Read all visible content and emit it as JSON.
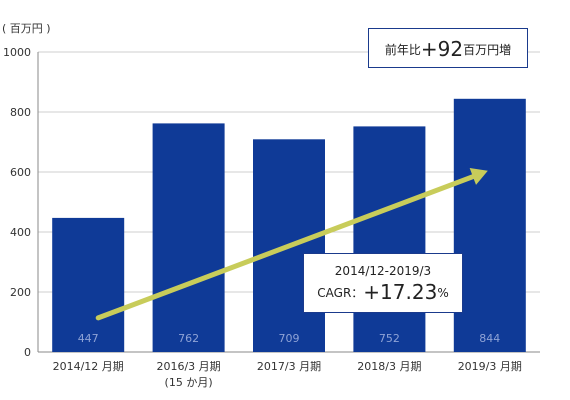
{
  "chart_data": {
    "type": "bar",
    "unit_label": "( 百万円 )",
    "categories": [
      "2014/12 月期",
      "2016/3 月期",
      "2017/3 月期",
      "2018/3 月期",
      "2019/3 月期"
    ],
    "category_sublabels": [
      "",
      "(15 か月)",
      "",
      "",
      ""
    ],
    "values": [
      447,
      762,
      709,
      752,
      844
    ],
    "ylim": [
      0,
      1000
    ],
    "yticks": [
      0,
      200,
      400,
      600,
      800,
      1000
    ],
    "grid": true,
    "bar_color": "#0f3a97",
    "bar_label_color": "#8fa3d6",
    "trend_arrow_color": "#c8cc5a",
    "annotations": {
      "yoy": {
        "prefix": "前年比",
        "value": "+92",
        "suffix": "百万円増"
      },
      "cagr": {
        "period": "2014/12-2019/3",
        "label": "CAGR：",
        "value": "+17.23",
        "suffix": "%"
      }
    }
  }
}
